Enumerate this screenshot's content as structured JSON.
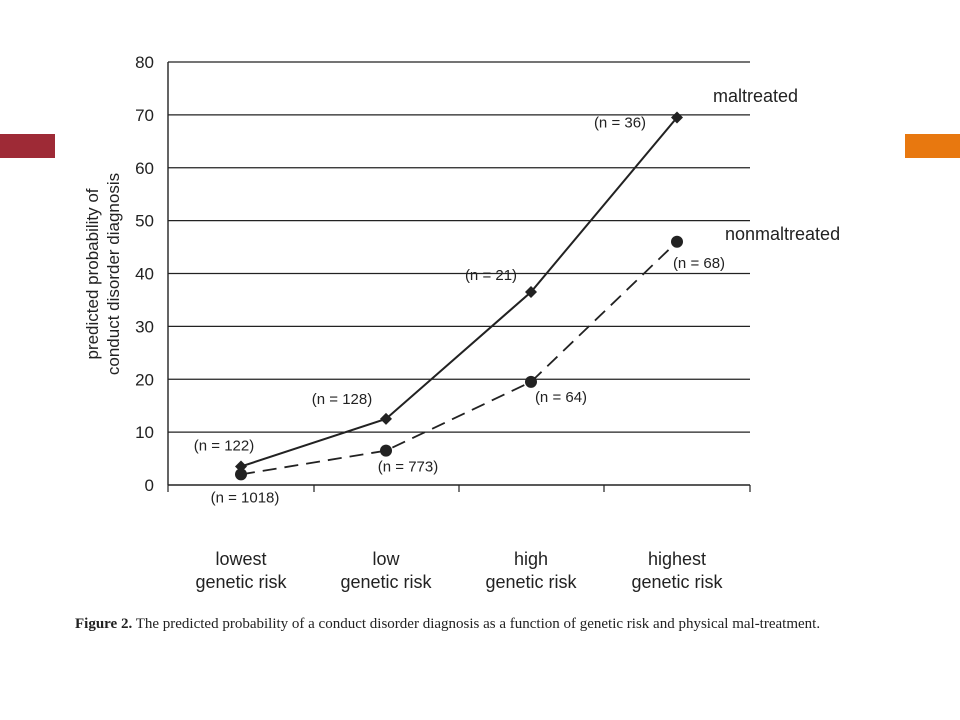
{
  "colors": {
    "accent_left": "#9e2a36",
    "accent_right": "#e8780f",
    "line": "#222222"
  },
  "caption": {
    "label": "Figure 2.",
    "text": "The predicted probability of a conduct disorder diagnosis as a function of genetic risk and physical mal-treatment."
  },
  "chart_data": {
    "type": "line",
    "title": "",
    "ylabel_lines": [
      "predicted probability of",
      "conduct disorder diagnosis"
    ],
    "xlabel": "",
    "ylim": [
      0,
      80
    ],
    "yticks": [
      0,
      10,
      20,
      30,
      40,
      50,
      60,
      70,
      80
    ],
    "grid": true,
    "categories": [
      [
        "lowest",
        "genetic risk"
      ],
      [
        "low",
        "genetic risk"
      ],
      [
        "high",
        "genetic risk"
      ],
      [
        "highest",
        "genetic risk"
      ]
    ],
    "series": [
      {
        "name": "maltreated",
        "marker": "diamond",
        "style": "solid",
        "values": [
          3.5,
          12.5,
          36.5,
          69.5
        ],
        "n_labels": [
          "(n = 122)",
          "(n = 128)",
          "(n = 21)",
          "(n = 36)"
        ]
      },
      {
        "name": "nonmaltreated",
        "marker": "circle",
        "style": "dashed",
        "values": [
          2,
          6.5,
          19.5,
          46
        ],
        "n_labels": [
          "(n = 1018)",
          "(n = 773)",
          "(n = 64)",
          "(n = 68)"
        ]
      }
    ]
  }
}
